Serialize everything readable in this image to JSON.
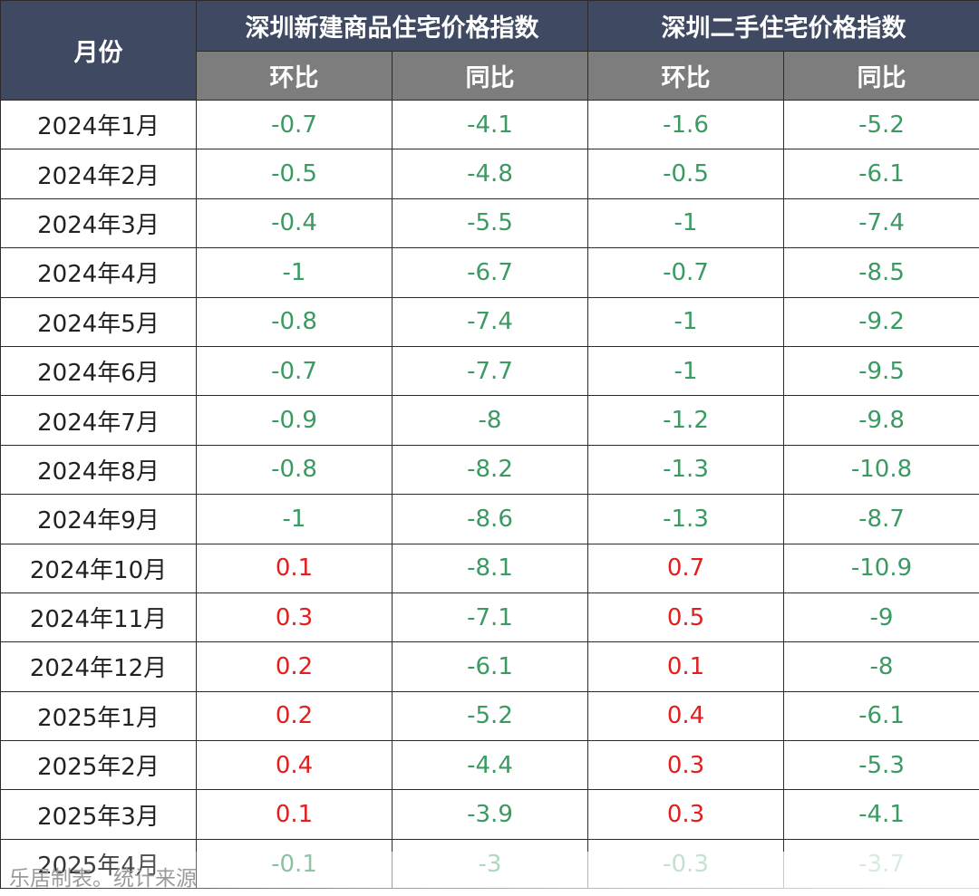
{
  "chart_data": {
    "type": "table",
    "header": {
      "month": "月份",
      "group_new": "深圳新建商品住宅价格指数",
      "group_second": "深圳二手住宅价格指数",
      "mom": "环比",
      "yoy": "同比"
    },
    "rows": [
      {
        "month": "2024年1月",
        "new_mom": "-0.7",
        "new_yoy": "-4.1",
        "sec_mom": "-1.6",
        "sec_yoy": "-5.2"
      },
      {
        "month": "2024年2月",
        "new_mom": "-0.5",
        "new_yoy": "-4.8",
        "sec_mom": "-0.5",
        "sec_yoy": "-6.1"
      },
      {
        "month": "2024年3月",
        "new_mom": "-0.4",
        "new_yoy": "-5.5",
        "sec_mom": "-1",
        "sec_yoy": "-7.4"
      },
      {
        "month": "2024年4月",
        "new_mom": "-1",
        "new_yoy": "-6.7",
        "sec_mom": "-0.7",
        "sec_yoy": "-8.5"
      },
      {
        "month": "2024年5月",
        "new_mom": "-0.8",
        "new_yoy": "-7.4",
        "sec_mom": "-1",
        "sec_yoy": "-9.2"
      },
      {
        "month": "2024年6月",
        "new_mom": "-0.7",
        "new_yoy": "-7.7",
        "sec_mom": "-1",
        "sec_yoy": "-9.5"
      },
      {
        "month": "2024年7月",
        "new_mom": "-0.9",
        "new_yoy": "-8",
        "sec_mom": "-1.2",
        "sec_yoy": "-9.8"
      },
      {
        "month": "2024年8月",
        "new_mom": "-0.8",
        "new_yoy": "-8.2",
        "sec_mom": "-1.3",
        "sec_yoy": "-10.8"
      },
      {
        "month": "2024年9月",
        "new_mom": "-1",
        "new_yoy": "-8.6",
        "sec_mom": "-1.3",
        "sec_yoy": "-8.7"
      },
      {
        "month": "2024年10月",
        "new_mom": "0.1",
        "new_yoy": "-8.1",
        "sec_mom": "0.7",
        "sec_yoy": "-10.9"
      },
      {
        "month": "2024年11月",
        "new_mom": "0.3",
        "new_yoy": "-7.1",
        "sec_mom": "0.5",
        "sec_yoy": "-9"
      },
      {
        "month": "2024年12月",
        "new_mom": "0.2",
        "new_yoy": "-6.1",
        "sec_mom": "0.1",
        "sec_yoy": "-8"
      },
      {
        "month": "2025年1月",
        "new_mom": "0.2",
        "new_yoy": "-5.2",
        "sec_mom": "0.4",
        "sec_yoy": "-6.1"
      },
      {
        "month": "2025年2月",
        "new_mom": "0.4",
        "new_yoy": "-4.4",
        "sec_mom": "0.3",
        "sec_yoy": "-5.3"
      },
      {
        "month": "2025年3月",
        "new_mom": "0.1",
        "new_yoy": "-3.9",
        "sec_mom": "0.3",
        "sec_yoy": "-4.1"
      },
      {
        "month": "2025年4月",
        "new_mom": "-0.1",
        "new_yoy": "-3",
        "sec_mom": "-0.3",
        "sec_yoy": "-3.7"
      }
    ],
    "colors": {
      "header_bg": "#3f4a62",
      "subheader_bg": "#7d7d7d",
      "negative": "#3a9a62",
      "positive": "#e0201e"
    }
  },
  "footer": "乐居制表。统计来源"
}
